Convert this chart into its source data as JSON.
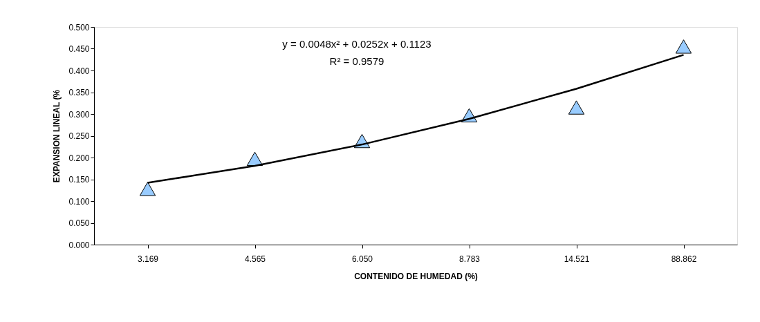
{
  "chart_data": {
    "type": "scatter",
    "xlabel": "CONTENIDO DE HUMEDAD (%)",
    "ylabel": "EXPANSION LINEAL (%",
    "categories": [
      "3.169",
      "4.565",
      "6.050",
      "8.783",
      "14.521",
      "88.862"
    ],
    "series": [
      {
        "color": "#99ccff",
        "marker": "triangle",
        "values": [
          0.128,
          0.197,
          0.238,
          0.297,
          0.315,
          0.455
        ]
      },
      {
        "type": "line",
        "color": "#000000",
        "marker": "none",
        "line_style": "solid",
        "x": [
          "3.169",
          "4.565",
          "6.050",
          "8.783",
          "14.521",
          "88.862"
        ],
        "values": [
          0.142,
          0.181,
          0.23,
          0.289,
          0.358,
          0.436
        ]
      }
    ],
    "ylim": [
      0,
      0.5
    ],
    "yticks": [
      {
        "value": 0,
        "label": "0.000"
      },
      {
        "value": 0.05,
        "label": "0.050"
      },
      {
        "value": 0.1,
        "label": "0.100"
      },
      {
        "value": 0.15,
        "label": "0.150"
      },
      {
        "value": 0.2,
        "label": "0.200"
      },
      {
        "value": 0.25,
        "label": "0.250"
      },
      {
        "value": 0.3,
        "label": "0.300"
      },
      {
        "value": 0.35,
        "label": "0.350"
      },
      {
        "value": 0.4,
        "label": "0.400"
      },
      {
        "value": 0.45,
        "label": "0.450"
      },
      {
        "value": 0.5,
        "label": "0.500"
      }
    ],
    "annotations": [
      "y = 0.0048x² + 0.0252x + 0.1123",
      "R² = 0.9579"
    ],
    "grid": false
  }
}
